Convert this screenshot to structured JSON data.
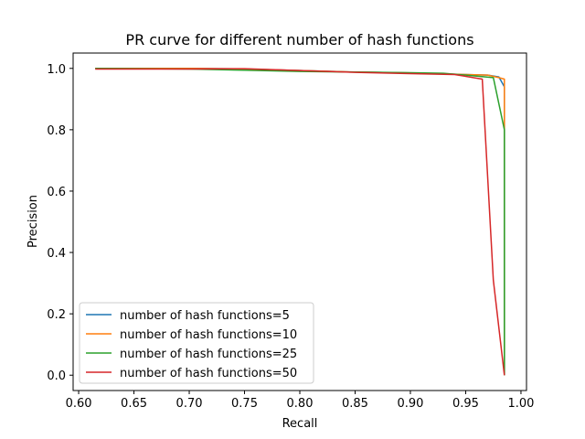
{
  "chart_data": {
    "type": "line",
    "title": "PR curve for different number of hash functions",
    "xlabel": "Recall",
    "ylabel": "Precision",
    "xlim": [
      0.595,
      1.005
    ],
    "ylim": [
      -0.05,
      1.05
    ],
    "xticks": [
      0.6,
      0.65,
      0.7,
      0.75,
      0.8,
      0.85,
      0.9,
      0.95,
      1.0
    ],
    "xtick_labels": [
      "0.60",
      "0.65",
      "0.70",
      "0.75",
      "0.80",
      "0.85",
      "0.90",
      "0.95",
      "1.00"
    ],
    "yticks": [
      0.0,
      0.2,
      0.4,
      0.6,
      0.8,
      1.0
    ],
    "ytick_labels": [
      "0.0",
      "0.2",
      "0.4",
      "0.6",
      "0.8",
      "1.0"
    ],
    "grid": false,
    "legend_position": "lower-left",
    "series": [
      {
        "name": "number of hash functions=5",
        "color": "#1f77b4",
        "points": [
          [
            0.615,
            1.0
          ],
          [
            0.7,
            1.0
          ],
          [
            0.75,
            0.998
          ],
          [
            0.8,
            0.993
          ],
          [
            0.85,
            0.988
          ],
          [
            0.9,
            0.985
          ],
          [
            0.95,
            0.98
          ],
          [
            0.97,
            0.978
          ],
          [
            0.98,
            0.972
          ],
          [
            0.985,
            0.94
          ],
          [
            0.985,
            0.0
          ]
        ]
      },
      {
        "name": "number of hash functions=10",
        "color": "#ff7f0e",
        "points": [
          [
            0.615,
            1.0
          ],
          [
            0.7,
            1.0
          ],
          [
            0.75,
            0.998
          ],
          [
            0.8,
            0.993
          ],
          [
            0.85,
            0.988
          ],
          [
            0.9,
            0.985
          ],
          [
            0.95,
            0.98
          ],
          [
            0.97,
            0.978
          ],
          [
            0.98,
            0.97
          ],
          [
            0.985,
            0.965
          ],
          [
            0.985,
            0.0
          ]
        ]
      },
      {
        "name": "number of hash functions=25",
        "color": "#2ca02c",
        "points": [
          [
            0.615,
            1.0
          ],
          [
            0.7,
            0.998
          ],
          [
            0.75,
            0.994
          ],
          [
            0.8,
            0.99
          ],
          [
            0.85,
            0.988
          ],
          [
            0.9,
            0.986
          ],
          [
            0.93,
            0.984
          ],
          [
            0.95,
            0.978
          ],
          [
            0.975,
            0.97
          ],
          [
            0.985,
            0.8
          ],
          [
            0.985,
            0.0
          ]
        ]
      },
      {
        "name": "number of hash functions=50",
        "color": "#d62728",
        "points": [
          [
            0.615,
            0.998
          ],
          [
            0.7,
            0.998
          ],
          [
            0.75,
            0.999
          ],
          [
            0.8,
            0.993
          ],
          [
            0.85,
            0.987
          ],
          [
            0.9,
            0.983
          ],
          [
            0.94,
            0.98
          ],
          [
            0.965,
            0.965
          ],
          [
            0.975,
            0.31
          ],
          [
            0.985,
            0.0
          ]
        ]
      }
    ]
  }
}
